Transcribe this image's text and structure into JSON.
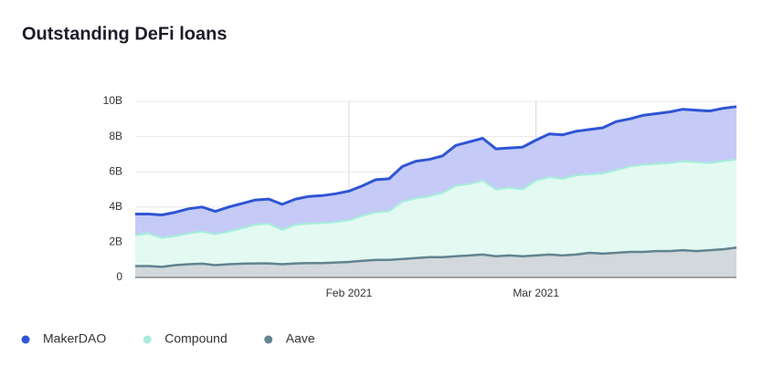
{
  "chart_data": {
    "type": "area",
    "title": "Outstanding DeFi loans",
    "categories": [
      null,
      null,
      null,
      null,
      null,
      null,
      null,
      null,
      null,
      null,
      null,
      null,
      null,
      null,
      null,
      null,
      "Feb 2021",
      null,
      null,
      null,
      null,
      null,
      null,
      null,
      null,
      null,
      null,
      null,
      null,
      null,
      "Mar 2021",
      null,
      null,
      null,
      null,
      null,
      null,
      null,
      null,
      null,
      null,
      null,
      null,
      null,
      null,
      null
    ],
    "series": [
      {
        "name": "MakerDAO",
        "color": "#2f55d4",
        "fill": "#c5cbf6",
        "values": [
          3.6,
          3.6,
          3.55,
          3.7,
          3.9,
          4.0,
          3.75,
          4.0,
          4.2,
          4.4,
          4.45,
          4.15,
          4.45,
          4.6,
          4.65,
          4.75,
          4.9,
          5.2,
          5.55,
          5.6,
          6.3,
          6.6,
          6.7,
          6.9,
          7.5,
          7.7,
          7.9,
          7.3,
          7.35,
          7.4,
          7.8,
          8.15,
          8.1,
          8.3,
          8.4,
          8.5,
          8.85,
          9.0,
          9.2,
          9.3,
          9.4,
          9.55,
          9.5,
          9.45,
          9.6,
          9.7
        ]
      },
      {
        "name": "Compound",
        "color": "#a6eedb",
        "fill": "#e2faf2",
        "values": [
          2.4,
          2.5,
          2.25,
          2.35,
          2.5,
          2.6,
          2.45,
          2.6,
          2.8,
          3.0,
          3.05,
          2.7,
          3.0,
          3.05,
          3.1,
          3.15,
          3.25,
          3.5,
          3.7,
          3.75,
          4.3,
          4.5,
          4.6,
          4.8,
          5.2,
          5.3,
          5.5,
          5.0,
          5.1,
          5.0,
          5.5,
          5.7,
          5.6,
          5.8,
          5.85,
          5.9,
          6.1,
          6.3,
          6.4,
          6.45,
          6.5,
          6.6,
          6.55,
          6.5,
          6.6,
          6.7
        ]
      },
      {
        "name": "Aave",
        "color": "#62838f",
        "fill": "#d2d8dc",
        "values": [
          0.65,
          0.65,
          0.6,
          0.7,
          0.75,
          0.78,
          0.7,
          0.75,
          0.78,
          0.8,
          0.8,
          0.75,
          0.8,
          0.82,
          0.82,
          0.85,
          0.88,
          0.95,
          1.0,
          1.0,
          1.05,
          1.1,
          1.15,
          1.15,
          1.2,
          1.25,
          1.3,
          1.2,
          1.25,
          1.2,
          1.25,
          1.3,
          1.25,
          1.3,
          1.4,
          1.35,
          1.4,
          1.45,
          1.45,
          1.5,
          1.5,
          1.55,
          1.5,
          1.55,
          1.6,
          1.7
        ]
      }
    ],
    "ylim": [
      0,
      10
    ],
    "yticks": [
      0,
      {
        "value": 2,
        "label": "2B"
      },
      {
        "value": 4,
        "label": "4B"
      },
      {
        "value": 6,
        "label": "6B"
      },
      {
        "value": 8,
        "label": "8B"
      },
      {
        "value": 10,
        "label": "10B"
      }
    ],
    "grid": true,
    "legend": "bottom"
  }
}
